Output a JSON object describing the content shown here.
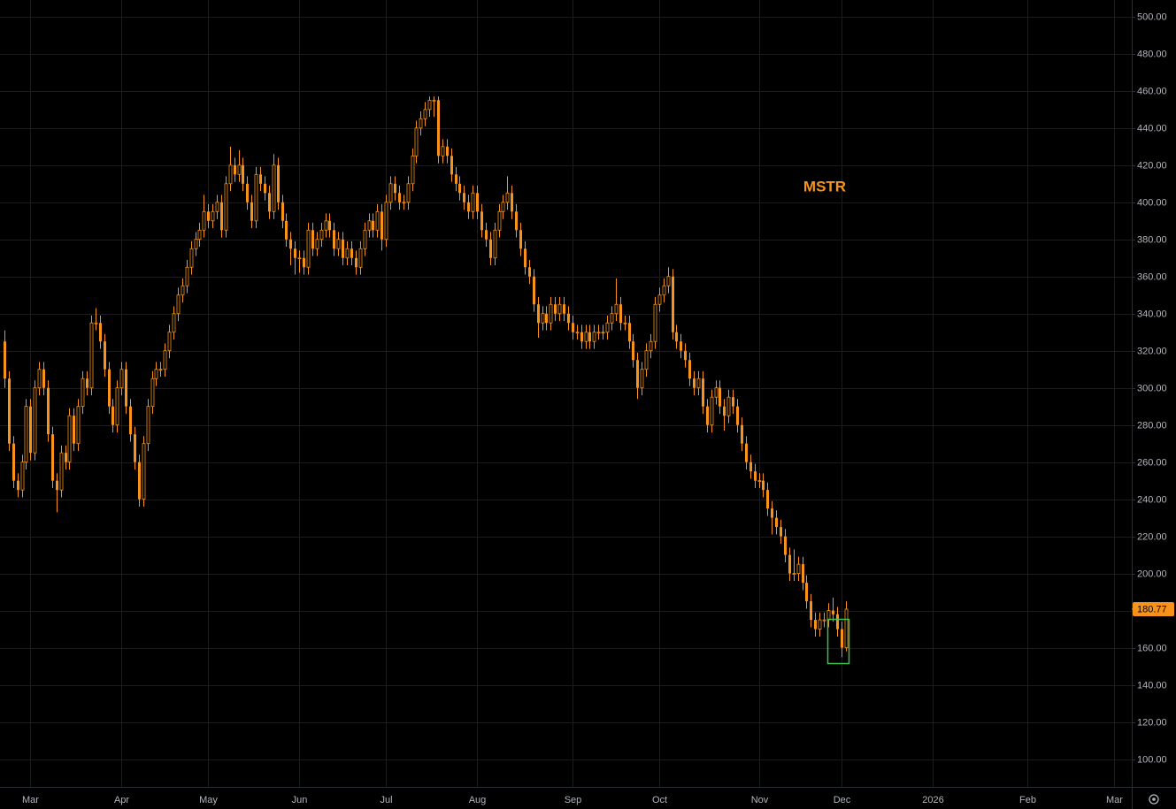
{
  "chart_data": {
    "type": "candlestick",
    "title": "MSTR",
    "color": "#f7931a",
    "last_price": 180.77,
    "xlim": [
      -1,
      260
    ],
    "xticks": [
      {
        "value": 6,
        "label": "Mar"
      },
      {
        "value": 27,
        "label": "Apr"
      },
      {
        "value": 47,
        "label": "May"
      },
      {
        "value": 68,
        "label": "Jun"
      },
      {
        "value": 88,
        "label": "Jul"
      },
      {
        "value": 109,
        "label": "Aug"
      },
      {
        "value": 131,
        "label": "Sep"
      },
      {
        "value": 151,
        "label": "Oct"
      },
      {
        "value": 174,
        "label": "Nov"
      },
      {
        "value": 193,
        "label": "Dec"
      },
      {
        "value": 214,
        "label": "2026"
      },
      {
        "value": 236,
        "label": "Feb"
      },
      {
        "value": 256,
        "label": "Mar"
      }
    ],
    "ylim": [
      85,
      509
    ],
    "yticks": [
      {
        "value": 100,
        "label": "100.00"
      },
      {
        "value": 120,
        "label": "120.00"
      },
      {
        "value": 140,
        "label": "140.00"
      },
      {
        "value": 160,
        "label": "160.00"
      },
      {
        "value": 180,
        "label": "180.00"
      },
      {
        "value": 200,
        "label": "200.00"
      },
      {
        "value": 220,
        "label": "220.00"
      },
      {
        "value": 240,
        "label": "240.00"
      },
      {
        "value": 260,
        "label": "260.00"
      },
      {
        "value": 280,
        "label": "280.00"
      },
      {
        "value": 300,
        "label": "300.00"
      },
      {
        "value": 320,
        "label": "320.00"
      },
      {
        "value": 340,
        "label": "340.00"
      },
      {
        "value": 360,
        "label": "360.00"
      },
      {
        "value": 380,
        "label": "380.00"
      },
      {
        "value": 400,
        "label": "400.00"
      },
      {
        "value": 420,
        "label": "420.00"
      },
      {
        "value": 440,
        "label": "440.00"
      },
      {
        "value": 460,
        "label": "460.00"
      },
      {
        "value": 480,
        "label": "480.00"
      },
      {
        "value": 500,
        "label": "500.00"
      }
    ],
    "grid": true,
    "ohlc": [
      [
        325,
        331,
        300,
        305
      ],
      [
        305,
        309,
        266,
        270
      ],
      [
        270,
        274,
        246,
        250
      ],
      [
        250,
        254,
        241,
        245
      ],
      [
        245,
        264,
        241,
        260
      ],
      [
        260,
        294,
        256,
        290
      ],
      [
        290,
        294,
        261,
        265
      ],
      [
        265,
        304,
        261,
        300
      ],
      [
        300,
        314,
        296,
        310
      ],
      [
        310,
        314,
        296,
        300
      ],
      [
        300,
        304,
        271,
        275
      ],
      [
        275,
        279,
        246,
        250
      ],
      [
        250,
        254,
        233,
        245
      ],
      [
        245,
        269,
        241,
        265
      ],
      [
        265,
        269,
        256,
        260
      ],
      [
        260,
        289,
        256,
        285
      ],
      [
        285,
        289,
        266,
        270
      ],
      [
        270,
        294,
        266,
        290
      ],
      [
        290,
        309,
        286,
        305
      ],
      [
        305,
        309,
        296,
        300
      ],
      [
        300,
        339,
        296,
        335
      ],
      [
        335,
        343,
        331,
        335
      ],
      [
        335,
        339,
        321,
        325
      ],
      [
        325,
        329,
        306,
        310
      ],
      [
        310,
        314,
        286,
        290
      ],
      [
        290,
        294,
        276,
        280
      ],
      [
        280,
        304,
        276,
        300
      ],
      [
        300,
        314,
        296,
        310
      ],
      [
        310,
        314,
        286,
        290
      ],
      [
        290,
        294,
        271,
        275
      ],
      [
        275,
        279,
        256,
        260
      ],
      [
        260,
        264,
        236,
        240
      ],
      [
        240,
        274,
        236,
        270
      ],
      [
        270,
        294,
        266,
        290
      ],
      [
        290,
        309,
        286,
        305
      ],
      [
        305,
        314,
        301,
        310
      ],
      [
        310,
        314,
        306,
        310
      ],
      [
        310,
        324,
        306,
        320
      ],
      [
        320,
        334,
        316,
        330
      ],
      [
        330,
        344,
        326,
        340
      ],
      [
        340,
        354,
        336,
        350
      ],
      [
        350,
        359,
        346,
        355
      ],
      [
        355,
        369,
        351,
        365
      ],
      [
        365,
        379,
        361,
        375
      ],
      [
        375,
        384,
        371,
        380
      ],
      [
        380,
        389,
        376,
        385
      ],
      [
        385,
        404,
        381,
        395
      ],
      [
        395,
        399,
        386,
        390
      ],
      [
        390,
        399,
        386,
        395
      ],
      [
        395,
        404,
        391,
        400
      ],
      [
        400,
        404,
        381,
        385
      ],
      [
        385,
        414,
        381,
        410
      ],
      [
        410,
        430,
        406,
        420
      ],
      [
        420,
        424,
        411,
        415
      ],
      [
        415,
        428,
        411,
        420
      ],
      [
        420,
        424,
        406,
        410
      ],
      [
        410,
        414,
        396,
        400
      ],
      [
        400,
        404,
        386,
        390
      ],
      [
        390,
        419,
        386,
        415
      ],
      [
        415,
        419,
        406,
        410
      ],
      [
        410,
        414,
        401,
        405
      ],
      [
        405,
        409,
        391,
        395
      ],
      [
        395,
        426,
        391,
        420
      ],
      [
        420,
        424,
        396,
        400
      ],
      [
        400,
        404,
        386,
        390
      ],
      [
        390,
        394,
        376,
        380
      ],
      [
        380,
        384,
        366,
        375
      ],
      [
        375,
        379,
        361,
        370
      ],
      [
        370,
        374,
        362,
        370
      ],
      [
        370,
        374,
        361,
        365
      ],
      [
        365,
        389,
        361,
        385
      ],
      [
        385,
        389,
        371,
        375
      ],
      [
        375,
        384,
        371,
        380
      ],
      [
        380,
        389,
        376,
        385
      ],
      [
        385,
        394,
        381,
        390
      ],
      [
        390,
        394,
        381,
        385
      ],
      [
        385,
        389,
        371,
        375
      ],
      [
        375,
        384,
        371,
        380
      ],
      [
        380,
        384,
        366,
        370
      ],
      [
        370,
        379,
        366,
        375
      ],
      [
        375,
        379,
        366,
        370
      ],
      [
        370,
        374,
        361,
        365
      ],
      [
        365,
        379,
        361,
        375
      ],
      [
        375,
        389,
        371,
        385
      ],
      [
        385,
        394,
        381,
        390
      ],
      [
        390,
        394,
        381,
        385
      ],
      [
        385,
        399,
        381,
        395
      ],
      [
        395,
        399,
        374,
        380
      ],
      [
        380,
        404,
        376,
        400
      ],
      [
        400,
        414,
        396,
        410
      ],
      [
        410,
        414,
        401,
        405
      ],
      [
        405,
        409,
        396,
        400
      ],
      [
        400,
        404,
        396,
        400
      ],
      [
        400,
        414,
        396,
        410
      ],
      [
        410,
        429,
        406,
        425
      ],
      [
        425,
        444,
        421,
        440
      ],
      [
        440,
        449,
        436,
        445
      ],
      [
        445,
        454,
        441,
        450
      ],
      [
        450,
        457,
        446,
        455
      ],
      [
        455,
        457,
        446,
        455
      ],
      [
        455,
        457,
        421,
        425
      ],
      [
        425,
        434,
        421,
        430
      ],
      [
        430,
        434,
        421,
        425
      ],
      [
        425,
        429,
        411,
        415
      ],
      [
        415,
        419,
        406,
        410
      ],
      [
        410,
        414,
        401,
        405
      ],
      [
        405,
        409,
        396,
        400
      ],
      [
        400,
        404,
        391,
        395
      ],
      [
        395,
        409,
        391,
        405
      ],
      [
        405,
        409,
        391,
        395
      ],
      [
        395,
        399,
        381,
        385
      ],
      [
        385,
        389,
        376,
        380
      ],
      [
        380,
        384,
        366,
        370
      ],
      [
        370,
        389,
        366,
        385
      ],
      [
        385,
        399,
        381,
        395
      ],
      [
        395,
        404,
        391,
        400
      ],
      [
        400,
        414,
        396,
        405
      ],
      [
        405,
        409,
        391,
        395
      ],
      [
        395,
        399,
        381,
        385
      ],
      [
        385,
        389,
        371,
        375
      ],
      [
        375,
        379,
        361,
        365
      ],
      [
        365,
        369,
        356,
        360
      ],
      [
        360,
        364,
        341,
        345
      ],
      [
        345,
        349,
        327,
        335
      ],
      [
        335,
        344,
        331,
        340
      ],
      [
        340,
        344,
        331,
        335
      ],
      [
        335,
        349,
        331,
        345
      ],
      [
        345,
        349,
        336,
        340
      ],
      [
        340,
        349,
        336,
        345
      ],
      [
        345,
        349,
        336,
        340
      ],
      [
        340,
        344,
        331,
        335
      ],
      [
        335,
        339,
        326,
        330
      ],
      [
        330,
        334,
        326,
        330
      ],
      [
        330,
        334,
        321,
        325
      ],
      [
        325,
        334,
        321,
        330
      ],
      [
        330,
        334,
        321,
        325
      ],
      [
        325,
        334,
        321,
        330
      ],
      [
        330,
        334,
        326,
        330
      ],
      [
        330,
        334,
        326,
        330
      ],
      [
        330,
        339,
        326,
        335
      ],
      [
        335,
        344,
        331,
        340
      ],
      [
        340,
        359,
        336,
        345
      ],
      [
        345,
        349,
        331,
        335
      ],
      [
        335,
        339,
        331,
        335
      ],
      [
        335,
        339,
        321,
        325
      ],
      [
        325,
        329,
        311,
        315
      ],
      [
        315,
        319,
        294,
        300
      ],
      [
        300,
        314,
        296,
        310
      ],
      [
        310,
        324,
        306,
        320
      ],
      [
        320,
        329,
        316,
        325
      ],
      [
        325,
        349,
        321,
        345
      ],
      [
        345,
        354,
        341,
        350
      ],
      [
        350,
        359,
        346,
        355
      ],
      [
        355,
        365,
        351,
        360
      ],
      [
        360,
        364,
        326,
        330
      ],
      [
        330,
        334,
        321,
        325
      ],
      [
        325,
        329,
        316,
        320
      ],
      [
        320,
        324,
        311,
        315
      ],
      [
        315,
        319,
        301,
        305
      ],
      [
        305,
        309,
        296,
        300
      ],
      [
        300,
        309,
        296,
        305
      ],
      [
        305,
        309,
        286,
        290
      ],
      [
        290,
        294,
        276,
        280
      ],
      [
        280,
        299,
        276,
        295
      ],
      [
        295,
        304,
        291,
        300
      ],
      [
        300,
        304,
        286,
        290
      ],
      [
        290,
        294,
        277,
        285
      ],
      [
        285,
        299,
        281,
        295
      ],
      [
        295,
        299,
        286,
        290
      ],
      [
        290,
        294,
        276,
        280
      ],
      [
        280,
        284,
        266,
        270
      ],
      [
        270,
        274,
        256,
        260
      ],
      [
        260,
        264,
        251,
        255
      ],
      [
        255,
        259,
        246,
        250
      ],
      [
        250,
        254,
        246,
        250
      ],
      [
        250,
        254,
        241,
        245
      ],
      [
        245,
        249,
        231,
        235
      ],
      [
        235,
        239,
        221,
        230
      ],
      [
        230,
        234,
        221,
        225
      ],
      [
        225,
        229,
        216,
        220
      ],
      [
        220,
        224,
        206,
        210
      ],
      [
        210,
        214,
        196,
        200
      ],
      [
        200,
        213,
        196,
        200
      ],
      [
        200,
        209,
        196,
        205
      ],
      [
        205,
        209,
        191,
        195
      ],
      [
        195,
        199,
        181,
        185
      ],
      [
        185,
        189,
        171,
        175
      ],
      [
        175,
        179,
        166,
        170
      ],
      [
        170,
        179,
        166,
        175
      ],
      [
        175,
        179,
        171,
        175
      ],
      [
        175,
        184,
        171,
        180
      ],
      [
        180,
        187,
        174,
        178
      ],
      [
        178,
        182,
        166,
        170
      ],
      [
        170,
        174,
        155,
        160
      ],
      [
        160,
        185,
        158,
        180.77
      ]
    ]
  }
}
